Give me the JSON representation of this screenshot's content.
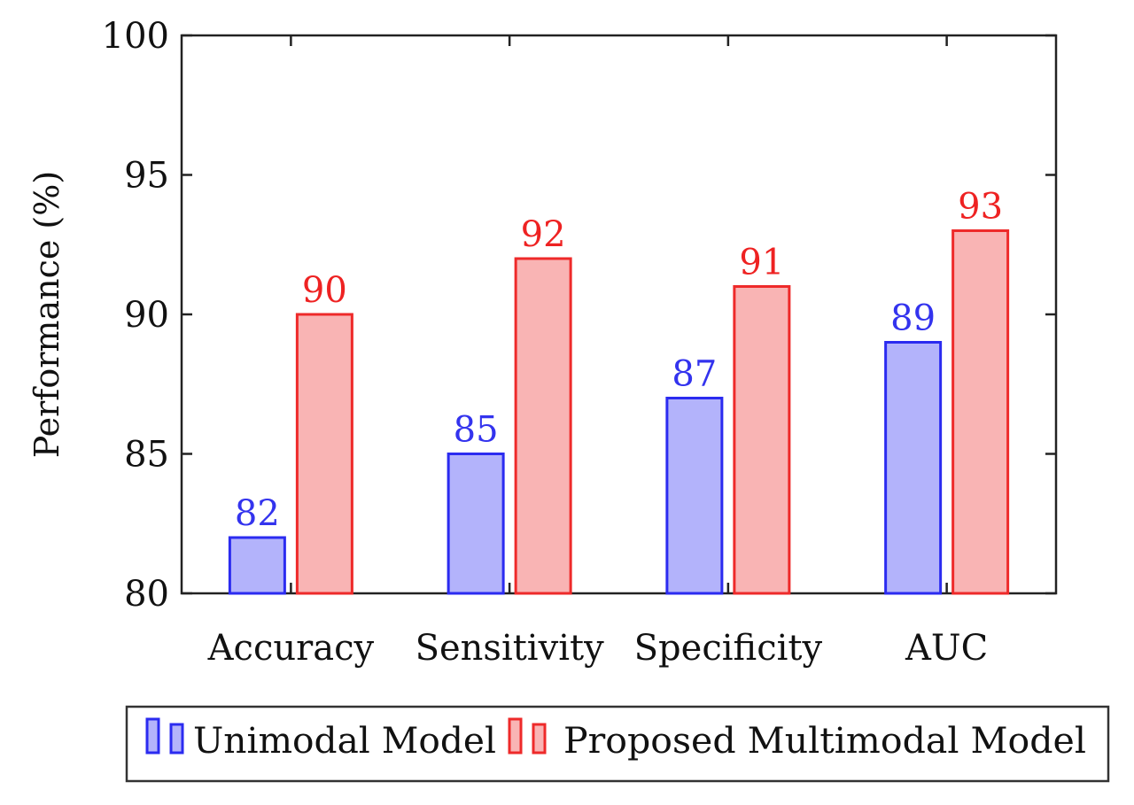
{
  "chart_data": {
    "type": "bar",
    "title": "",
    "xlabel": "",
    "ylabel": "Performance (%)",
    "ylim": [
      80,
      100
    ],
    "yticks": [
      80,
      85,
      90,
      95,
      100
    ],
    "categories": [
      "Accuracy",
      "Sensitivity",
      "Specificity",
      "AUC"
    ],
    "series": [
      {
        "name": "Unimodal Model",
        "values": [
          82,
          85,
          87,
          89
        ],
        "fill": "#b3b3fb",
        "stroke": "#2b2bf0",
        "label_color": "#3333ee"
      },
      {
        "name": "Proposed Multimodal Model",
        "values": [
          90,
          92,
          91,
          93
        ],
        "fill": "#f9b4b4",
        "stroke": "#ee2a2a",
        "label_color": "#ee2222"
      }
    ],
    "legend": {
      "position": "bottom"
    },
    "data_labels": true,
    "grid": false
  }
}
